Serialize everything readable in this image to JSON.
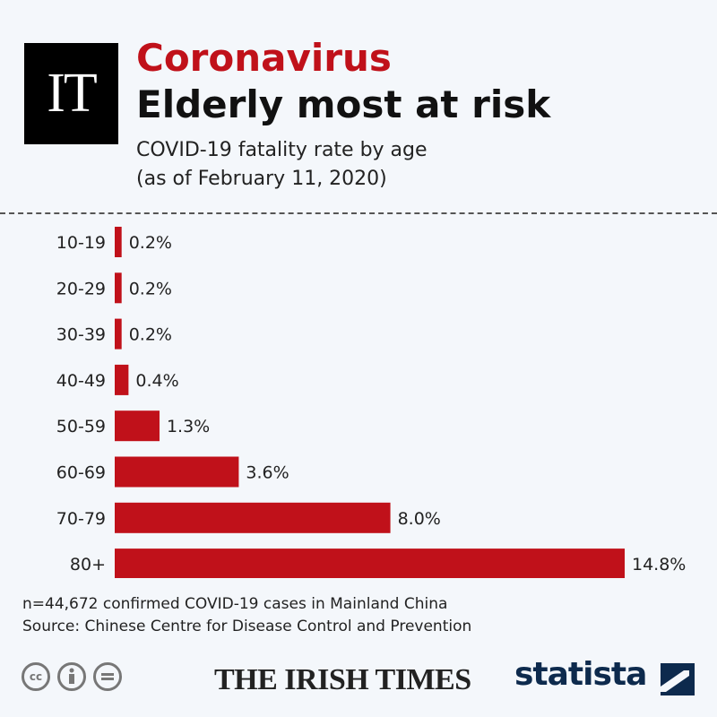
{
  "header": {
    "logo_text": "IT",
    "kicker": "Coronavirus",
    "title": "Elderly most at risk",
    "subtitle_line1": "COVID-19 fatality rate by age",
    "subtitle_line2": "(as of February 11, 2020)"
  },
  "chart_data": {
    "type": "bar",
    "orientation": "horizontal",
    "categories": [
      "10-19",
      "20-29",
      "30-39",
      "40-49",
      "50-59",
      "60-69",
      "70-79",
      "80+"
    ],
    "values": [
      0.2,
      0.2,
      0.2,
      0.4,
      1.3,
      3.6,
      8.0,
      14.8
    ],
    "value_labels": [
      "0.2%",
      "0.2%",
      "0.2%",
      "0.4%",
      "1.3%",
      "3.6%",
      "8.0%",
      "14.8%"
    ],
    "unit": "%",
    "xlim": [
      0,
      14.8
    ],
    "grid": false,
    "bar_color": "#c0111a"
  },
  "footer": {
    "note_line1": "n=44,672 confirmed COVID-19 cases in Mainland China",
    "note_line2": "Source: Chinese Centre for Disease Control and Prevention",
    "cc_icons": [
      "cc-icon",
      "attribution-icon",
      "no-derivatives-icon"
    ],
    "publisher": "THE IRISH TIMES",
    "brand": "statista"
  },
  "colors": {
    "accent": "#c0111a",
    "background": "#f4f7fb",
    "brand_navy": "#0d2a4d"
  }
}
